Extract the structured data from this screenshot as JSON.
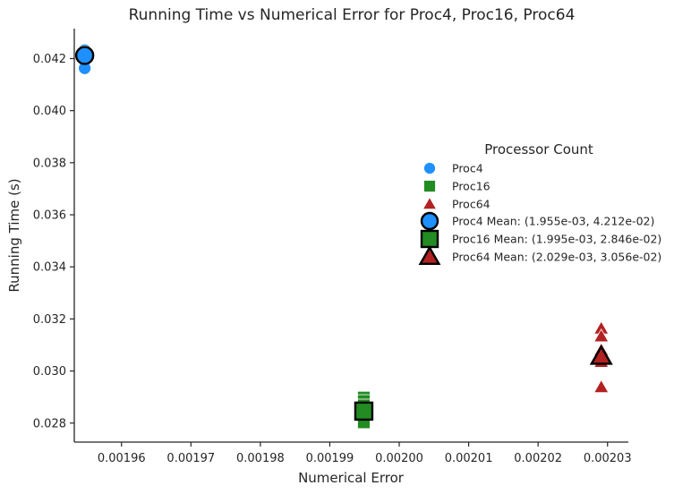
{
  "chart_data": {
    "type": "scatter",
    "title": "Running Time vs Numerical Error for Proc4, Proc16, Proc64",
    "xlabel": "Numerical Error",
    "ylabel": "Running Time (s)",
    "xlim": [
      0.0019532,
      0.002033
    ],
    "ylim": [
      0.02727,
      0.04315
    ],
    "x_ticks": [
      0.00196,
      0.00197,
      0.00198,
      0.00199,
      0.002,
      0.00201,
      0.00202,
      0.00203
    ],
    "x_tick_labels": [
      "0.00196",
      "0.00197",
      "0.00198",
      "0.00199",
      "0.00200",
      "0.00201",
      "0.00202",
      "0.00203"
    ],
    "y_ticks": [
      0.028,
      0.03,
      0.032,
      0.034,
      0.036,
      0.038,
      0.04,
      0.042
    ],
    "y_tick_labels": [
      "0.028",
      "0.030",
      "0.032",
      "0.034",
      "0.036",
      "0.038",
      "0.040",
      "0.042"
    ],
    "grid": false,
    "legend_title": "Processor Count",
    "legend_position": "right",
    "series": [
      {
        "name": "Proc4",
        "marker": "circle",
        "color": "#1E90FF",
        "points": [
          {
            "x": 0.0019547,
            "y": 0.04232
          },
          {
            "x": 0.0019547,
            "y": 0.04225
          },
          {
            "x": 0.0019547,
            "y": 0.04218
          },
          {
            "x": 0.0019547,
            "y": 0.0421
          },
          {
            "x": 0.0019547,
            "y": 0.04204
          },
          {
            "x": 0.0019547,
            "y": 0.04163
          }
        ]
      },
      {
        "name": "Proc16",
        "marker": "square",
        "color": "#228B22",
        "points": [
          {
            "x": 0.0019949,
            "y": 0.02898
          },
          {
            "x": 0.0019949,
            "y": 0.02885
          },
          {
            "x": 0.0019949,
            "y": 0.02868
          },
          {
            "x": 0.0019949,
            "y": 0.0285
          },
          {
            "x": 0.0019949,
            "y": 0.02835
          },
          {
            "x": 0.0019949,
            "y": 0.02818
          },
          {
            "x": 0.0019949,
            "y": 0.02803
          }
        ]
      },
      {
        "name": "Proc64",
        "marker": "triangle",
        "color": "#B22222",
        "points": [
          {
            "x": 0.0020291,
            "y": 0.03163
          },
          {
            "x": 0.0020291,
            "y": 0.03133
          },
          {
            "x": 0.0020291,
            "y": 0.0308
          },
          {
            "x": 0.0020291,
            "y": 0.03035
          },
          {
            "x": 0.0020291,
            "y": 0.02938
          }
        ]
      }
    ],
    "means": [
      {
        "name": "Proc4 Mean: (1.955e-03, 4.212e-02)",
        "marker": "circle",
        "color": "#1E90FF",
        "x": 0.0019547,
        "y": 0.04212
      },
      {
        "name": "Proc16 Mean: (1.995e-03, 2.846e-02)",
        "marker": "square",
        "color": "#228B22",
        "x": 0.0019949,
        "y": 0.02846
      },
      {
        "name": "Proc64 Mean: (2.029e-03, 3.056e-02)",
        "marker": "triangle",
        "color": "#B22222",
        "x": 0.0020291,
        "y": 0.03056
      }
    ]
  }
}
